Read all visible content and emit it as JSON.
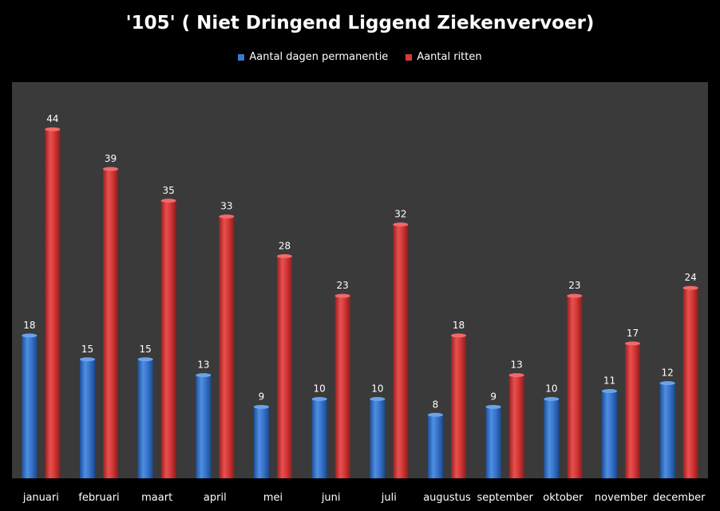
{
  "chart_data": {
    "type": "bar",
    "title": "'105' ( Niet Dringend Liggend Ziekenvervoer)",
    "xlabel": "",
    "ylabel": "",
    "ylim": [
      0,
      48
    ],
    "grid": false,
    "legend_position": "top",
    "categories": [
      "januari",
      "februari",
      "maart",
      "april",
      "mei",
      "juni",
      "juli",
      "augustus",
      "september",
      "oktober",
      "november",
      "december"
    ],
    "series": [
      {
        "name": "Aantal dagen permanentie",
        "color": "#3a78d0",
        "values": [
          18,
          15,
          15,
          13,
          9,
          10,
          10,
          8,
          9,
          10,
          11,
          12
        ]
      },
      {
        "name": "Aantal ritten",
        "color": "#d83a3a",
        "values": [
          44,
          39,
          35,
          33,
          28,
          23,
          32,
          18,
          13,
          23,
          17,
          24
        ]
      }
    ]
  },
  "colors": {
    "background": "#000000",
    "plot_area": "#3a3a3a",
    "text": "#ffffff"
  }
}
